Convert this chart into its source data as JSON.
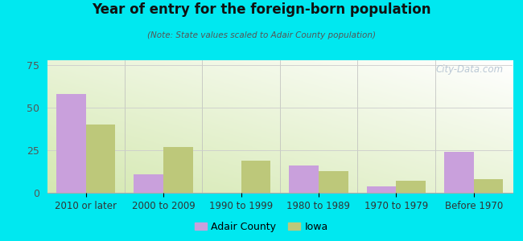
{
  "categories": [
    "2010 or later",
    "2000 to 2009",
    "1990 to 1999",
    "1980 to 1989",
    "1970 to 1979",
    "Before 1970"
  ],
  "adair_values": [
    58,
    11,
    0,
    16,
    4,
    24
  ],
  "iowa_values": [
    40,
    27,
    19,
    13,
    7,
    8
  ],
  "adair_color": "#c9a0dc",
  "iowa_color": "#bdc87a",
  "title": "Year of entry for the foreign-born population",
  "subtitle": "(Note: State values scaled to Adair County population)",
  "legend_adair": "Adair County",
  "legend_iowa": "Iowa",
  "ylim": [
    0,
    78
  ],
  "yticks": [
    0,
    25,
    50,
    75
  ],
  "outer_background": "#00e8f0",
  "watermark": "City-Data.com",
  "bar_width": 0.38
}
